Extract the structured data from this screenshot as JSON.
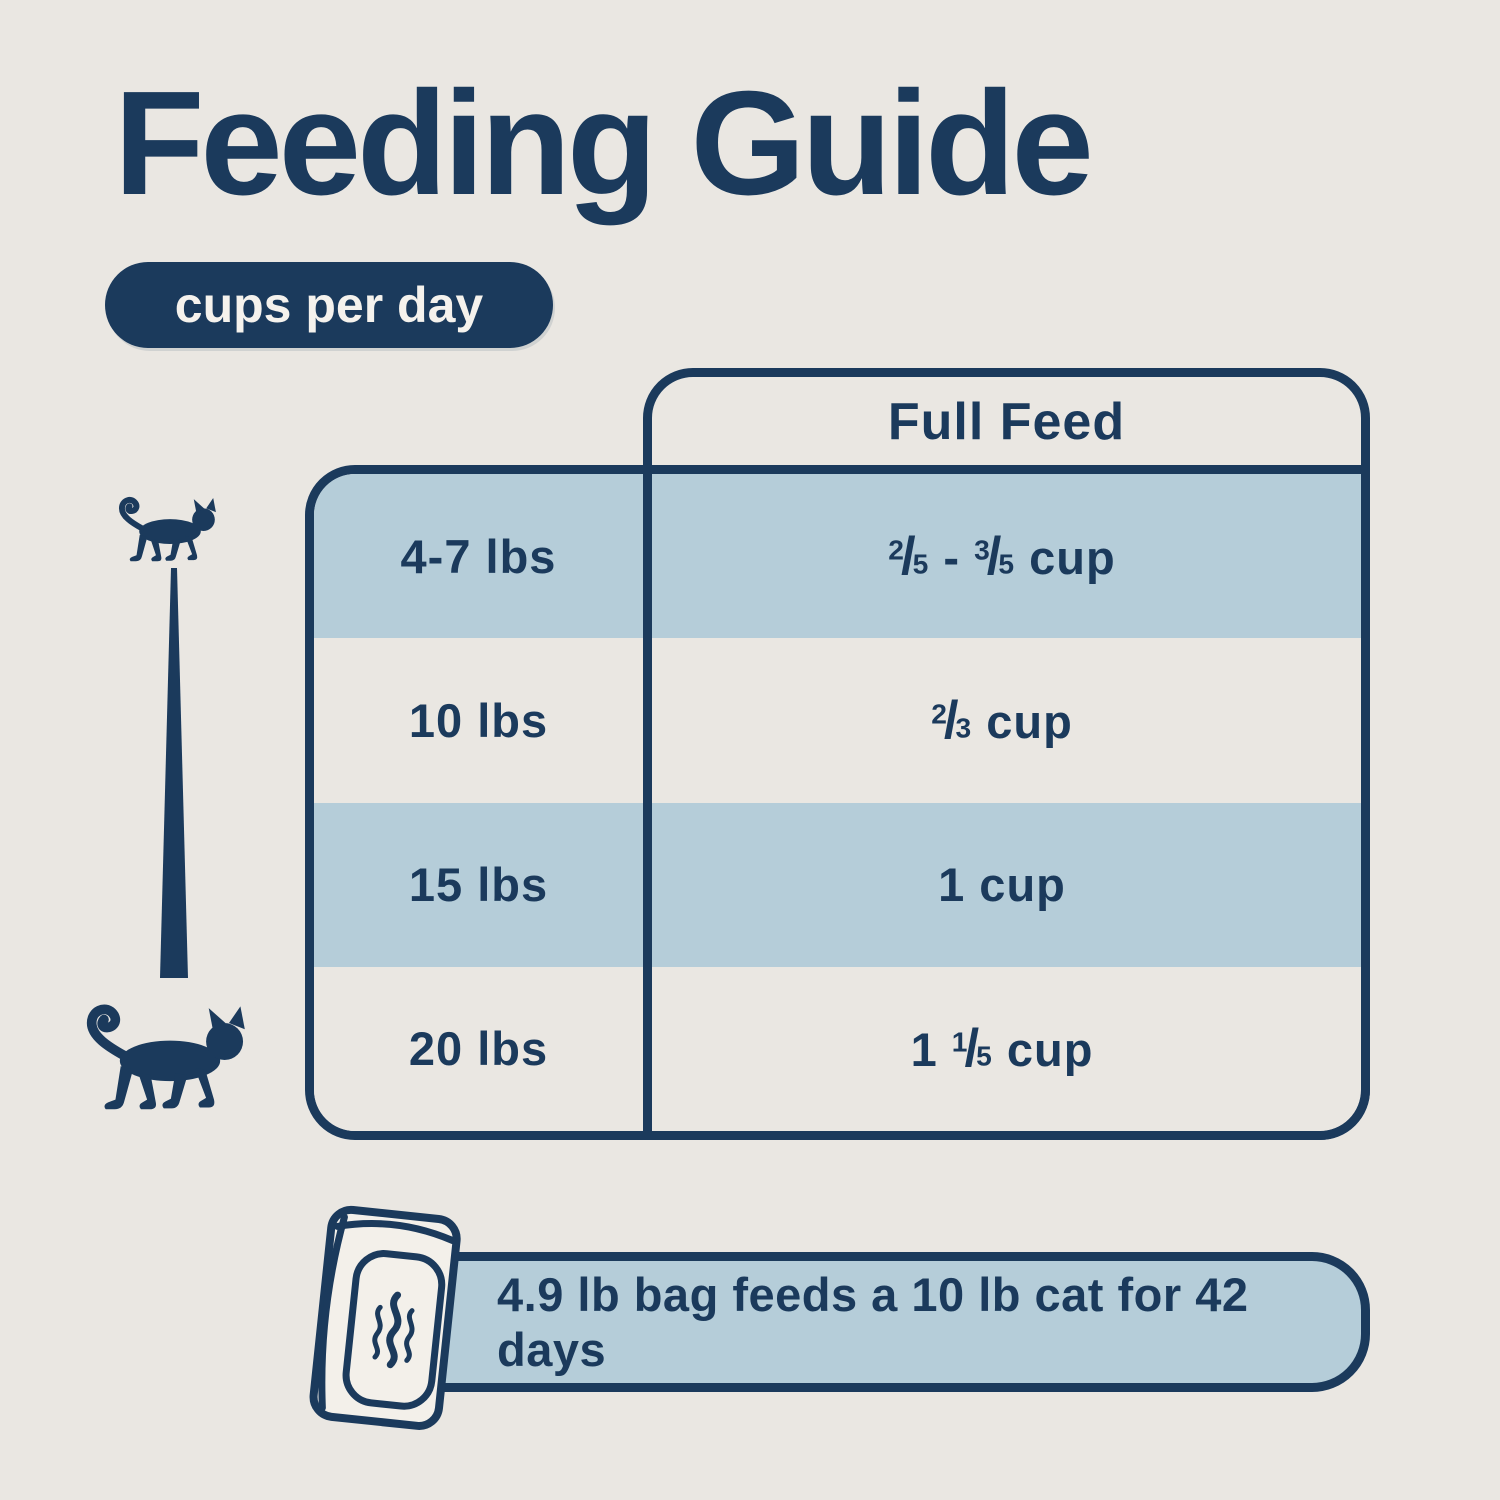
{
  "colors": {
    "navy": "#1b3a5c",
    "light_blue": "#b5cdd9",
    "background": "#eae7e2"
  },
  "title": "Feeding Guide",
  "badge": "cups per day",
  "table": {
    "header": "Full Feed",
    "rows": [
      {
        "weight": "4-7 lbs",
        "amount": [
          {
            "frac": [
              "2",
              "5"
            ]
          },
          {
            "text": " - "
          },
          {
            "frac": [
              "3",
              "5"
            ]
          },
          {
            "text": " cup"
          }
        ]
      },
      {
        "weight": "10 lbs",
        "amount": [
          {
            "frac": [
              "2",
              "3"
            ]
          },
          {
            "text": " cup"
          }
        ]
      },
      {
        "weight": "15 lbs",
        "amount": [
          {
            "text": "1 cup"
          }
        ]
      },
      {
        "weight": "20 lbs",
        "amount": [
          {
            "text": "1 "
          },
          {
            "frac": [
              "1",
              "5"
            ]
          },
          {
            "text": " cup"
          }
        ]
      }
    ]
  },
  "banner": {
    "text": "4.9 lb bag feeds a 10 lb cat for 42 days"
  },
  "icons": {
    "small_cat": "small-cat-icon",
    "large_cat": "large-cat-icon",
    "wedge": "size-increase-wedge",
    "bag": "food-bag-icon"
  }
}
